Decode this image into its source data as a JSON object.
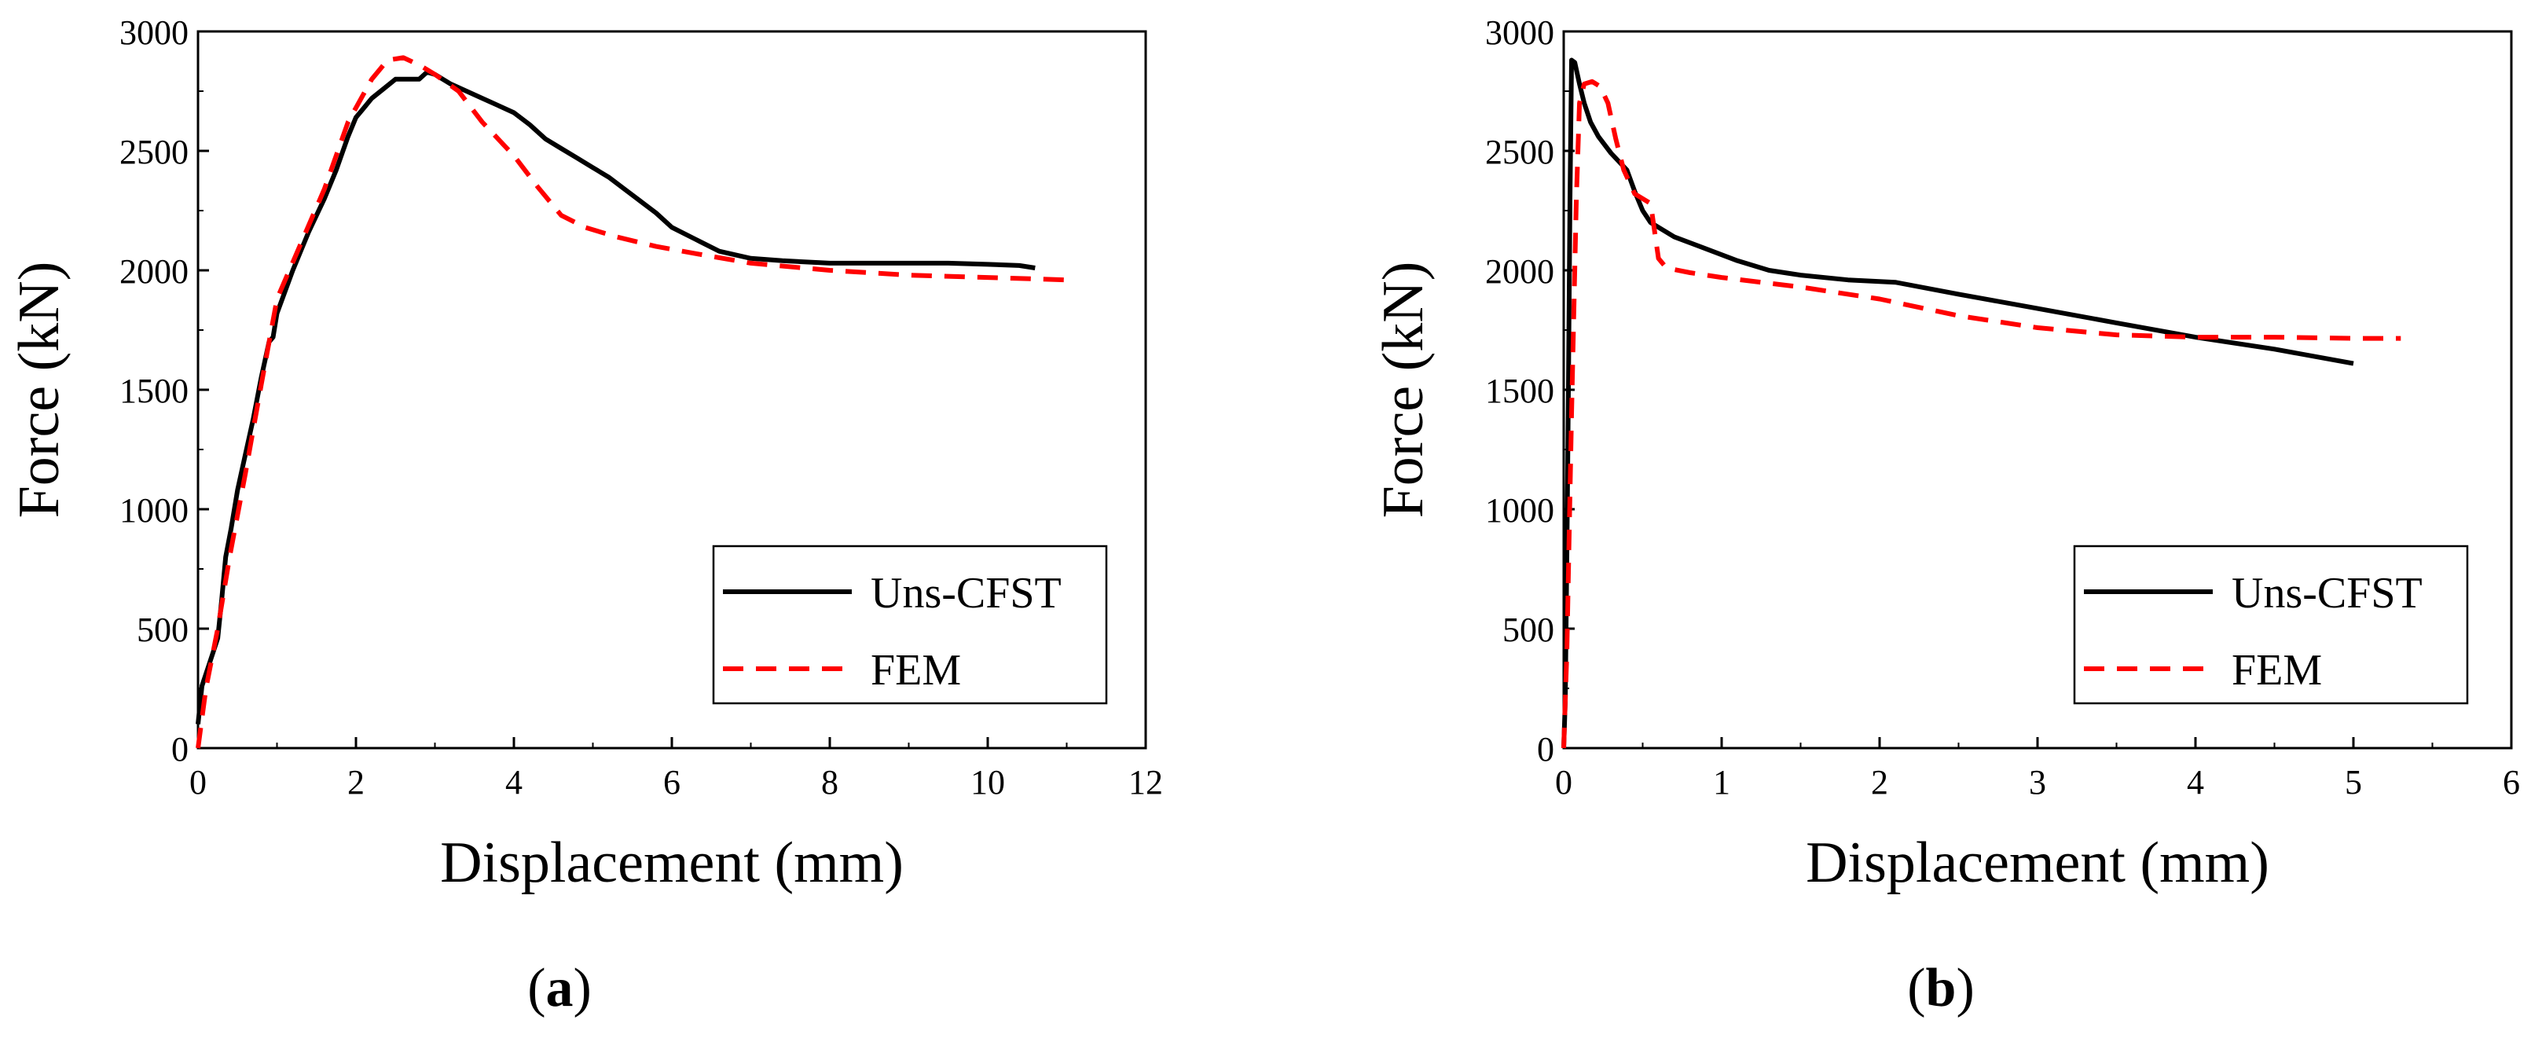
{
  "chart_data": [
    {
      "panel": "a",
      "panel_label": "a",
      "type": "line",
      "title": "",
      "xlabel": "Displacement (mm)",
      "ylabel": "Force (kN)",
      "xlim": [
        0,
        12
      ],
      "ylim": [
        0,
        3000
      ],
      "xticks": [
        0,
        2,
        4,
        6,
        8,
        10,
        12
      ],
      "yticks": [
        0,
        500,
        1000,
        1500,
        2000,
        2500,
        3000
      ],
      "grid": false,
      "legend_position": "lower-right",
      "series": [
        {
          "name": "Uns-CFST",
          "color": "#000000",
          "style": "solid",
          "x": [
            0,
            0.05,
            0.15,
            0.25,
            0.3,
            0.35,
            0.42,
            0.5,
            0.6,
            0.7,
            0.8,
            0.9,
            0.95,
            1.0,
            1.2,
            1.4,
            1.6,
            1.75,
            1.9,
            2.0,
            2.1,
            2.2,
            2.35,
            2.5,
            2.6,
            2.8,
            2.9,
            3.0,
            3.2,
            3.4,
            3.6,
            3.8,
            4.0,
            4.2,
            4.4,
            4.6,
            4.8,
            5.0,
            5.2,
            5.4,
            5.6,
            5.8,
            6.0,
            6.3,
            6.6,
            7.0,
            7.4,
            8.0,
            8.5,
            9.0,
            9.5,
            10.0,
            10.4,
            10.6
          ],
          "y": [
            100,
            260,
            360,
            460,
            620,
            800,
            920,
            1080,
            1230,
            1380,
            1550,
            1700,
            1720,
            1820,
            2000,
            2160,
            2300,
            2420,
            2560,
            2640,
            2680,
            2720,
            2760,
            2800,
            2800,
            2800,
            2830,
            2820,
            2780,
            2750,
            2720,
            2690,
            2660,
            2610,
            2550,
            2510,
            2470,
            2430,
            2390,
            2340,
            2290,
            2240,
            2180,
            2130,
            2080,
            2050,
            2040,
            2030,
            2030,
            2030,
            2030,
            2025,
            2020,
            2010
          ]
        },
        {
          "name": "FEM",
          "color": "#ff0000",
          "style": "dashed",
          "x": [
            0,
            0.1,
            0.25,
            0.4,
            0.6,
            0.8,
            1.0,
            1.3,
            1.6,
            1.9,
            2.2,
            2.4,
            2.6,
            2.8,
            3.0,
            3.3,
            3.6,
            4.0,
            4.3,
            4.6,
            4.9,
            5.3,
            5.8,
            6.3,
            7.0,
            8.0,
            9.0,
            10.0,
            11.0
          ],
          "y": [
            0,
            250,
            500,
            800,
            1150,
            1520,
            1880,
            2110,
            2340,
            2620,
            2800,
            2880,
            2890,
            2860,
            2820,
            2750,
            2620,
            2480,
            2350,
            2230,
            2180,
            2140,
            2100,
            2070,
            2030,
            2000,
            1980,
            1970,
            1960
          ]
        }
      ]
    },
    {
      "panel": "b",
      "panel_label": "b",
      "type": "line",
      "title": "",
      "xlabel": "Displacement (mm)",
      "ylabel": "Force (kN)",
      "xlim": [
        0,
        6
      ],
      "ylim": [
        0,
        3000
      ],
      "xticks": [
        0,
        1,
        2,
        3,
        4,
        5,
        6
      ],
      "yticks": [
        0,
        500,
        1000,
        1500,
        2000,
        2500,
        3000
      ],
      "grid": false,
      "legend_position": "lower-right",
      "series": [
        {
          "name": "Uns-CFST",
          "color": "#000000",
          "style": "solid",
          "x": [
            0,
            0.01,
            0.02,
            0.03,
            0.04,
            0.05,
            0.07,
            0.1,
            0.13,
            0.17,
            0.22,
            0.3,
            0.4,
            0.45,
            0.5,
            0.55,
            0.7,
            0.9,
            1.1,
            1.3,
            1.5,
            1.8,
            2.1,
            2.5,
            3.0,
            3.5,
            4.0,
            4.5,
            5.0
          ],
          "y": [
            0,
            200,
            800,
            1500,
            2300,
            2880,
            2870,
            2780,
            2700,
            2620,
            2560,
            2490,
            2420,
            2330,
            2250,
            2200,
            2140,
            2090,
            2040,
            2000,
            1980,
            1960,
            1950,
            1900,
            1840,
            1780,
            1720,
            1670,
            1610
          ]
        },
        {
          "name": "FEM",
          "color": "#ff0000",
          "style": "dashed",
          "x": [
            0,
            0.02,
            0.05,
            0.08,
            0.1,
            0.13,
            0.18,
            0.23,
            0.28,
            0.33,
            0.38,
            0.45,
            0.5,
            0.55,
            0.6,
            0.65,
            0.8,
            1.0,
            1.5,
            2.0,
            2.5,
            3.0,
            3.5,
            4.0,
            4.5,
            5.0,
            5.3
          ],
          "y": [
            0,
            400,
            1400,
            2300,
            2700,
            2780,
            2790,
            2770,
            2700,
            2550,
            2420,
            2320,
            2300,
            2280,
            2050,
            2010,
            1990,
            1970,
            1930,
            1880,
            1810,
            1760,
            1730,
            1720,
            1720,
            1715,
            1715
          ]
        }
      ]
    }
  ]
}
